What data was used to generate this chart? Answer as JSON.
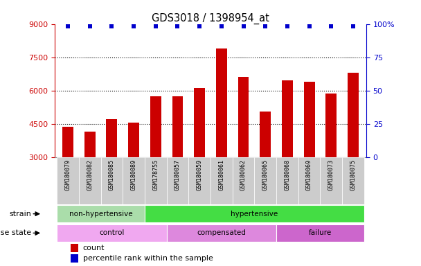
{
  "title": "GDS3018 / 1398954_at",
  "samples": [
    "GSM180079",
    "GSM180082",
    "GSM180085",
    "GSM180089",
    "GSM178755",
    "GSM180057",
    "GSM180059",
    "GSM180061",
    "GSM180062",
    "GSM180065",
    "GSM180068",
    "GSM180069",
    "GSM180073",
    "GSM180075"
  ],
  "counts": [
    4350,
    4150,
    4700,
    4550,
    5750,
    5750,
    6100,
    7900,
    6600,
    5050,
    6450,
    6400,
    5850,
    6800
  ],
  "percentile_ranks": [
    98,
    98,
    98,
    98,
    98,
    98,
    98,
    98,
    98,
    98,
    98,
    98,
    98,
    98
  ],
  "ylim_left": [
    3000,
    9000
  ],
  "ylim_right": [
    0,
    100
  ],
  "yticks_left": [
    3000,
    4500,
    6000,
    7500,
    9000
  ],
  "yticks_right": [
    0,
    25,
    50,
    75,
    100
  ],
  "strain_groups": [
    {
      "label": "non-hypertensive",
      "start": 0,
      "end": 4,
      "color": "#aaddaa"
    },
    {
      "label": "hypertensive",
      "start": 4,
      "end": 14,
      "color": "#44dd44"
    }
  ],
  "disease_groups": [
    {
      "label": "control",
      "start": 0,
      "end": 5,
      "color": "#f0a8f0"
    },
    {
      "label": "compensated",
      "start": 5,
      "end": 10,
      "color": "#dd88dd"
    },
    {
      "label": "failure",
      "start": 10,
      "end": 14,
      "color": "#cc66cc"
    }
  ],
  "bar_color": "#cc0000",
  "dot_color": "#0000cc",
  "grid_color": "#000000",
  "left_axis_color": "#cc0000",
  "right_axis_color": "#0000cc",
  "bg_color": "#ffffff",
  "tick_bg_color": "#cccccc",
  "strain_label": "strain",
  "disease_label": "disease state",
  "legend_count": "count",
  "legend_percentile": "percentile rank within the sample"
}
